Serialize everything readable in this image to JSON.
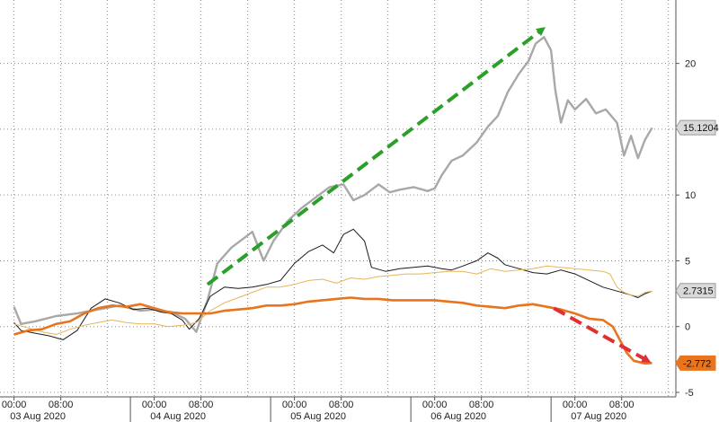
{
  "chart_data": {
    "type": "line",
    "title": "",
    "xlabel": "",
    "ylabel": "",
    "ylim": [
      -5,
      24
    ],
    "y_ticks": [
      -5,
      0,
      5,
      10,
      15,
      20
    ],
    "y_axis_position": "right",
    "grid": true,
    "time_ticks": [
      "00:00",
      "08:00",
      "00:00",
      "08:00",
      "00:00",
      "08:00",
      "00:00",
      "08:00",
      "00:00",
      "08:00"
    ],
    "date_labels": [
      "03 Aug 2020",
      "04 Aug 2020",
      "05 Aug 2020",
      "06 Aug 2020",
      "07 Aug 2020"
    ],
    "series": [
      {
        "color": "#a8a8a8",
        "last_value": "15.1204",
        "points": [
          [
            0,
            1.5
          ],
          [
            0.05,
            0.2
          ],
          [
            0.15,
            0.4
          ],
          [
            0.3,
            0.8
          ],
          [
            0.45,
            1.0
          ],
          [
            0.6,
            1.3
          ],
          [
            0.75,
            1.6
          ],
          [
            0.9,
            1.2
          ],
          [
            1.0,
            1.3
          ],
          [
            1.12,
            1.1
          ],
          [
            1.22,
            0.6
          ],
          [
            1.3,
            -0.4
          ],
          [
            1.38,
            2.0
          ],
          [
            1.45,
            4.8
          ],
          [
            1.55,
            6.0
          ],
          [
            1.7,
            7.2
          ],
          [
            1.78,
            5.0
          ],
          [
            1.85,
            6.5
          ],
          [
            1.95,
            8.0
          ],
          [
            2.05,
            9.0
          ],
          [
            2.15,
            9.8
          ],
          [
            2.25,
            10.6
          ],
          [
            2.35,
            10.8
          ],
          [
            2.42,
            9.6
          ],
          [
            2.5,
            10.0
          ],
          [
            2.6,
            10.8
          ],
          [
            2.68,
            10.2
          ],
          [
            2.75,
            10.4
          ],
          [
            2.85,
            10.6
          ],
          [
            2.95,
            10.3
          ],
          [
            3.0,
            10.5
          ],
          [
            3.05,
            11.5
          ],
          [
            3.12,
            12.6
          ],
          [
            3.2,
            13.0
          ],
          [
            3.3,
            14.0
          ],
          [
            3.38,
            15.2
          ],
          [
            3.45,
            16.0
          ],
          [
            3.52,
            17.8
          ],
          [
            3.6,
            19.2
          ],
          [
            3.67,
            20.2
          ],
          [
            3.72,
            21.5
          ],
          [
            3.78,
            22.0
          ],
          [
            3.83,
            21.0
          ],
          [
            3.86,
            18.0
          ],
          [
            3.9,
            15.5
          ],
          [
            3.95,
            17.2
          ],
          [
            4.0,
            16.5
          ],
          [
            4.08,
            17.3
          ],
          [
            4.15,
            16.2
          ],
          [
            4.22,
            16.5
          ],
          [
            4.3,
            15.5
          ],
          [
            4.35,
            13.0
          ],
          [
            4.4,
            14.5
          ],
          [
            4.45,
            12.8
          ],
          [
            4.5,
            14.2
          ],
          [
            4.55,
            15.1
          ]
        ]
      },
      {
        "color": "#1a1a1a",
        "last_value": "2.7315",
        "points": [
          [
            0,
            0.3
          ],
          [
            0.05,
            -0.3
          ],
          [
            0.15,
            -0.5
          ],
          [
            0.25,
            -0.7
          ],
          [
            0.35,
            -1.0
          ],
          [
            0.45,
            -0.3
          ],
          [
            0.55,
            1.4
          ],
          [
            0.65,
            2.1
          ],
          [
            0.75,
            1.8
          ],
          [
            0.85,
            1.3
          ],
          [
            0.95,
            1.4
          ],
          [
            1.05,
            1.1
          ],
          [
            1.12,
            1.0
          ],
          [
            1.2,
            0.5
          ],
          [
            1.25,
            -0.2
          ],
          [
            1.32,
            0.6
          ],
          [
            1.4,
            2.3
          ],
          [
            1.5,
            3.0
          ],
          [
            1.6,
            2.9
          ],
          [
            1.7,
            3.0
          ],
          [
            1.8,
            3.2
          ],
          [
            1.9,
            3.5
          ],
          [
            2.0,
            4.8
          ],
          [
            2.1,
            5.7
          ],
          [
            2.2,
            6.2
          ],
          [
            2.28,
            5.6
          ],
          [
            2.35,
            7.0
          ],
          [
            2.42,
            7.4
          ],
          [
            2.5,
            6.5
          ],
          [
            2.55,
            4.5
          ],
          [
            2.65,
            4.2
          ],
          [
            2.75,
            4.4
          ],
          [
            2.85,
            4.5
          ],
          [
            2.95,
            4.6
          ],
          [
            3.05,
            4.4
          ],
          [
            3.12,
            4.3
          ],
          [
            3.2,
            4.6
          ],
          [
            3.3,
            5.0
          ],
          [
            3.38,
            5.6
          ],
          [
            3.45,
            5.2
          ],
          [
            3.5,
            4.7
          ],
          [
            3.6,
            4.4
          ],
          [
            3.7,
            4.1
          ],
          [
            3.8,
            4.0
          ],
          [
            3.9,
            4.3
          ],
          [
            4.0,
            4.0
          ],
          [
            4.1,
            3.5
          ],
          [
            4.2,
            3.0
          ],
          [
            4.3,
            2.7
          ],
          [
            4.4,
            2.4
          ],
          [
            4.45,
            2.2
          ],
          [
            4.5,
            2.5
          ],
          [
            4.55,
            2.7
          ]
        ]
      },
      {
        "color": "#e8b558",
        "last_value": "",
        "points": [
          [
            0,
            0.2
          ],
          [
            0.1,
            -0.1
          ],
          [
            0.2,
            -0.4
          ],
          [
            0.3,
            -0.6
          ],
          [
            0.4,
            -0.2
          ],
          [
            0.5,
            0.1
          ],
          [
            0.6,
            0.3
          ],
          [
            0.7,
            0.5
          ],
          [
            0.8,
            0.3
          ],
          [
            0.9,
            0.2
          ],
          [
            1.0,
            0.2
          ],
          [
            1.1,
            0.0
          ],
          [
            1.2,
            0.1
          ],
          [
            1.3,
            0.3
          ],
          [
            1.4,
            1.2
          ],
          [
            1.5,
            1.8
          ],
          [
            1.6,
            2.2
          ],
          [
            1.7,
            2.6
          ],
          [
            1.8,
            3.0
          ],
          [
            1.9,
            3.0
          ],
          [
            2.0,
            3.2
          ],
          [
            2.1,
            3.5
          ],
          [
            2.2,
            3.6
          ],
          [
            2.3,
            3.3
          ],
          [
            2.4,
            3.7
          ],
          [
            2.5,
            3.6
          ],
          [
            2.6,
            3.8
          ],
          [
            2.7,
            3.9
          ],
          [
            2.8,
            4.0
          ],
          [
            2.9,
            4.0
          ],
          [
            3.0,
            4.1
          ],
          [
            3.1,
            4.2
          ],
          [
            3.2,
            4.2
          ],
          [
            3.3,
            4.0
          ],
          [
            3.4,
            4.4
          ],
          [
            3.5,
            4.2
          ],
          [
            3.6,
            4.3
          ],
          [
            3.7,
            4.4
          ],
          [
            3.8,
            4.6
          ],
          [
            3.9,
            4.5
          ],
          [
            4.0,
            4.4
          ],
          [
            4.1,
            4.3
          ],
          [
            4.2,
            4.2
          ],
          [
            4.25,
            4.0
          ],
          [
            4.3,
            3.0
          ],
          [
            4.35,
            2.6
          ],
          [
            4.4,
            2.4
          ],
          [
            4.45,
            2.3
          ],
          [
            4.5,
            2.6
          ],
          [
            4.55,
            2.7
          ]
        ]
      },
      {
        "color": "#e8741e",
        "last_value": "-2.772",
        "points": [
          [
            0,
            -0.6
          ],
          [
            0.1,
            -0.3
          ],
          [
            0.2,
            -0.2
          ],
          [
            0.3,
            0.2
          ],
          [
            0.4,
            0.4
          ],
          [
            0.5,
            1.0
          ],
          [
            0.6,
            1.4
          ],
          [
            0.7,
            1.6
          ],
          [
            0.8,
            1.5
          ],
          [
            0.9,
            1.7
          ],
          [
            1.0,
            1.4
          ],
          [
            1.1,
            1.1
          ],
          [
            1.2,
            1.0
          ],
          [
            1.3,
            1.0
          ],
          [
            1.4,
            1.0
          ],
          [
            1.5,
            1.2
          ],
          [
            1.6,
            1.3
          ],
          [
            1.7,
            1.4
          ],
          [
            1.8,
            1.6
          ],
          [
            1.9,
            1.6
          ],
          [
            2.0,
            1.7
          ],
          [
            2.1,
            1.9
          ],
          [
            2.2,
            2.0
          ],
          [
            2.3,
            2.1
          ],
          [
            2.4,
            2.2
          ],
          [
            2.5,
            2.1
          ],
          [
            2.6,
            2.1
          ],
          [
            2.7,
            2.0
          ],
          [
            2.8,
            2.0
          ],
          [
            2.9,
            2.0
          ],
          [
            3.0,
            2.0
          ],
          [
            3.1,
            1.9
          ],
          [
            3.2,
            1.8
          ],
          [
            3.3,
            1.6
          ],
          [
            3.4,
            1.5
          ],
          [
            3.5,
            1.4
          ],
          [
            3.6,
            1.6
          ],
          [
            3.7,
            1.7
          ],
          [
            3.8,
            1.5
          ],
          [
            3.9,
            1.3
          ],
          [
            4.0,
            1.0
          ],
          [
            4.1,
            0.6
          ],
          [
            4.2,
            0.5
          ],
          [
            4.27,
            0.0
          ],
          [
            4.32,
            -1.0
          ],
          [
            4.37,
            -2.0
          ],
          [
            4.42,
            -2.6
          ],
          [
            4.5,
            -2.8
          ],
          [
            4.55,
            -2.77
          ]
        ]
      }
    ],
    "annotations": [
      {
        "color": "#2aa02a",
        "from": [
          1.38,
          3.2
        ],
        "to": [
          3.77,
          22.6
        ]
      },
      {
        "color": "#e23030",
        "from": [
          3.85,
          1.4
        ],
        "to": [
          4.52,
          -2.6
        ]
      }
    ]
  }
}
